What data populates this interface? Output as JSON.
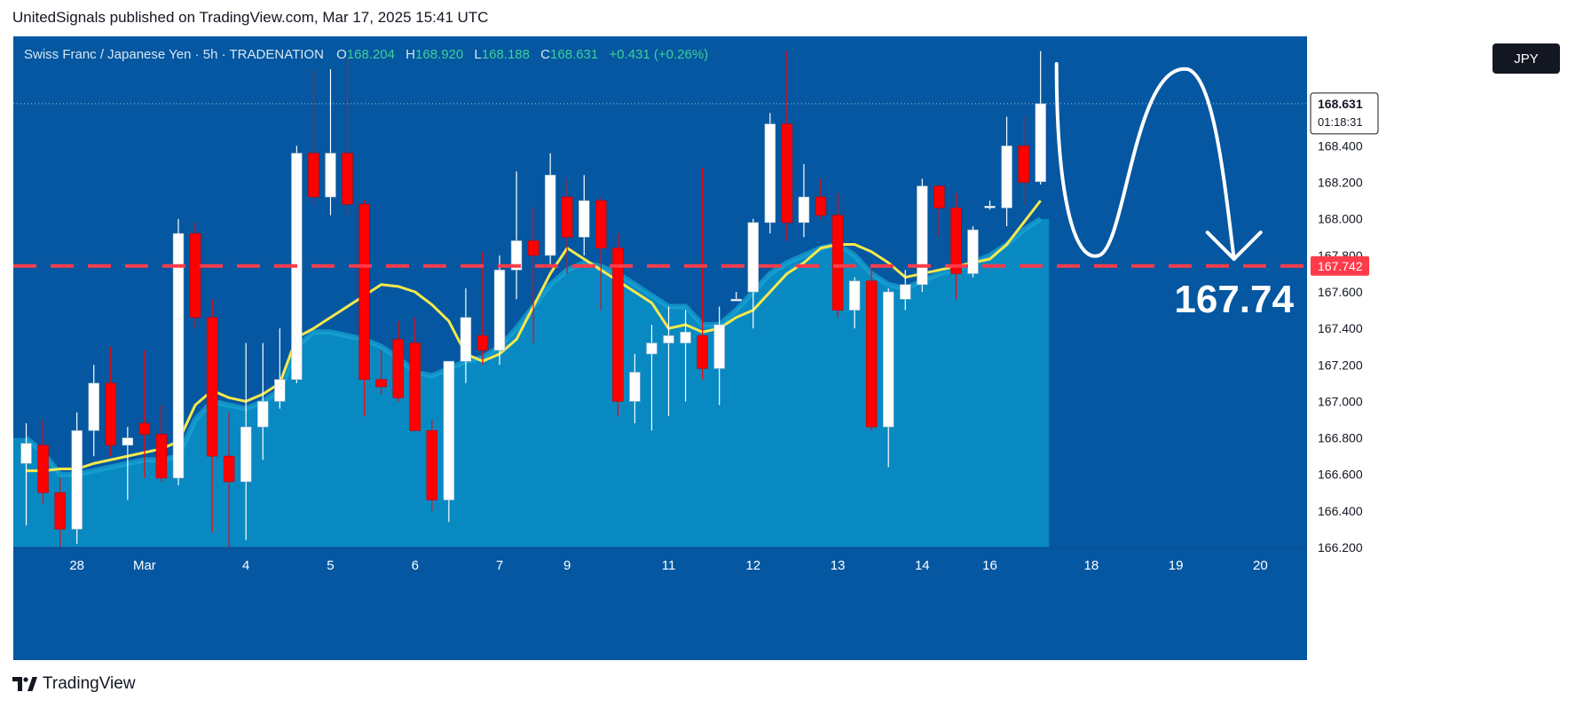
{
  "header": {
    "publisher_line": "UnitedSignals published on TradingView.com, Mar 17, 2025 15:41 UTC"
  },
  "footer": {
    "brand": "TradingView"
  },
  "currency_button": "JPY",
  "legend": {
    "symbol": "Swiss Franc  / Japanese Yen · 5h · TRADENATION",
    "o_label": "O",
    "o": "168.204",
    "h_label": "H",
    "h": "168.920",
    "l_label": "L",
    "l": "168.188",
    "c_label": "C",
    "c": "168.631",
    "change": "+0.431 (+0.26%)"
  },
  "price_badge": {
    "price": "168.631",
    "countdown": "01:18:31"
  },
  "level_badge": "167.742",
  "target_annotation": "167.74",
  "colors": {
    "background": "#0457a0",
    "up_candle": "#ffffff",
    "down_candle": "#ff0000",
    "ma_line": "#f5e94b",
    "area_fill": "#0a8cc4",
    "level_line": "#ff3b4a",
    "level_badge": "#ff3b4a"
  },
  "chart_data": {
    "type": "candlestick",
    "symbol": "CHF/JPY",
    "timeframe": "5h",
    "ylim": [
      166.2,
      169.0
    ],
    "y_ticks": [
      166.2,
      166.4,
      166.6,
      166.8,
      167.0,
      167.2,
      167.4,
      167.6,
      167.8,
      168.0,
      168.2,
      168.4
    ],
    "y_tick_labels": [
      "166.200",
      "166.400",
      "166.600",
      "166.800",
      "167.000",
      "167.200",
      "167.400",
      "167.600",
      "167.800",
      "168.000",
      "168.200",
      "168.400"
    ],
    "x_ticks": [
      {
        "label": "28",
        "bar": 3
      },
      {
        "label": "Mar",
        "bar": 7
      },
      {
        "label": "4",
        "bar": 13
      },
      {
        "label": "5",
        "bar": 18
      },
      {
        "label": "6",
        "bar": 23
      },
      {
        "label": "7",
        "bar": 28
      },
      {
        "label": "9",
        "bar": 32
      },
      {
        "label": "11",
        "bar": 38
      },
      {
        "label": "12",
        "bar": 43
      },
      {
        "label": "13",
        "bar": 48
      },
      {
        "label": "14",
        "bar": 53
      },
      {
        "label": "16",
        "bar": 57
      },
      {
        "label": "18",
        "bar": 63
      },
      {
        "label": "19",
        "bar": 68
      },
      {
        "label": "20",
        "bar": 73
      }
    ],
    "total_slots": 76,
    "candles": [
      {
        "o": 166.66,
        "h": 166.88,
        "l": 166.32,
        "c": 166.77
      },
      {
        "o": 166.76,
        "h": 166.9,
        "l": 166.44,
        "c": 166.5
      },
      {
        "o": 166.5,
        "h": 166.58,
        "l": 166.2,
        "c": 166.3
      },
      {
        "o": 166.3,
        "h": 166.94,
        "l": 166.22,
        "c": 166.84
      },
      {
        "o": 166.84,
        "h": 167.2,
        "l": 166.7,
        "c": 167.1
      },
      {
        "o": 167.1,
        "h": 167.3,
        "l": 166.7,
        "c": 166.76
      },
      {
        "o": 166.76,
        "h": 166.86,
        "l": 166.46,
        "c": 166.8
      },
      {
        "o": 166.88,
        "h": 167.28,
        "l": 166.58,
        "c": 166.82
      },
      {
        "o": 166.82,
        "h": 166.98,
        "l": 166.56,
        "c": 166.58
      },
      {
        "o": 166.58,
        "h": 168.0,
        "l": 166.54,
        "c": 167.92
      },
      {
        "o": 167.92,
        "h": 167.98,
        "l": 167.4,
        "c": 167.46
      },
      {
        "o": 167.46,
        "h": 167.56,
        "l": 166.28,
        "c": 166.7
      },
      {
        "o": 166.7,
        "h": 166.94,
        "l": 166.2,
        "c": 166.56
      },
      {
        "o": 166.56,
        "h": 167.32,
        "l": 166.24,
        "c": 166.86
      },
      {
        "o": 166.86,
        "h": 167.32,
        "l": 166.68,
        "c": 167.0
      },
      {
        "o": 167.0,
        "h": 167.4,
        "l": 166.96,
        "c": 167.12
      },
      {
        "o": 167.12,
        "h": 168.4,
        "l": 167.1,
        "c": 168.36
      },
      {
        "o": 168.36,
        "h": 168.82,
        "l": 168.08,
        "c": 168.12
      },
      {
        "o": 168.12,
        "h": 168.82,
        "l": 168.02,
        "c": 168.36
      },
      {
        "o": 168.36,
        "h": 168.88,
        "l": 168.02,
        "c": 168.08
      },
      {
        "o": 168.08,
        "h": 168.1,
        "l": 166.92,
        "c": 167.12
      },
      {
        "o": 167.12,
        "h": 167.28,
        "l": 167.04,
        "c": 167.08
      },
      {
        "o": 167.34,
        "h": 167.44,
        "l": 167.0,
        "c": 167.02
      },
      {
        "o": 167.32,
        "h": 167.46,
        "l": 166.84,
        "c": 166.84
      },
      {
        "o": 166.84,
        "h": 166.9,
        "l": 166.4,
        "c": 166.46
      },
      {
        "o": 166.46,
        "h": 167.22,
        "l": 166.34,
        "c": 167.22
      },
      {
        "o": 167.22,
        "h": 167.62,
        "l": 167.1,
        "c": 167.46
      },
      {
        "o": 167.36,
        "h": 167.82,
        "l": 167.2,
        "c": 167.28
      },
      {
        "o": 167.28,
        "h": 167.8,
        "l": 167.2,
        "c": 167.72
      },
      {
        "o": 167.72,
        "h": 168.26,
        "l": 167.56,
        "c": 167.88
      },
      {
        "o": 167.88,
        "h": 168.06,
        "l": 167.32,
        "c": 167.8
      },
      {
        "o": 167.8,
        "h": 168.36,
        "l": 167.74,
        "c": 168.24
      },
      {
        "o": 168.12,
        "h": 168.22,
        "l": 167.7,
        "c": 167.9
      },
      {
        "o": 167.9,
        "h": 168.24,
        "l": 167.8,
        "c": 168.1
      },
      {
        "o": 168.1,
        "h": 168.12,
        "l": 167.5,
        "c": 167.84
      },
      {
        "o": 167.84,
        "h": 167.92,
        "l": 166.92,
        "c": 167.0
      },
      {
        "o": 167.0,
        "h": 167.26,
        "l": 166.88,
        "c": 167.16
      },
      {
        "o": 167.26,
        "h": 167.42,
        "l": 166.84,
        "c": 167.32
      },
      {
        "o": 167.32,
        "h": 167.52,
        "l": 166.92,
        "c": 167.36
      },
      {
        "o": 167.32,
        "h": 167.5,
        "l": 167.0,
        "c": 167.38
      },
      {
        "o": 167.36,
        "h": 168.28,
        "l": 167.12,
        "c": 167.18
      },
      {
        "o": 167.18,
        "h": 167.52,
        "l": 166.98,
        "c": 167.42
      },
      {
        "o": 167.56,
        "h": 167.6,
        "l": 167.56,
        "c": 167.56
      },
      {
        "o": 167.6,
        "h": 168.0,
        "l": 167.4,
        "c": 167.98
      },
      {
        "o": 167.98,
        "h": 168.58,
        "l": 167.92,
        "c": 168.52
      },
      {
        "o": 168.52,
        "h": 168.92,
        "l": 167.88,
        "c": 167.98
      },
      {
        "o": 167.98,
        "h": 168.3,
        "l": 167.9,
        "c": 168.12
      },
      {
        "o": 168.12,
        "h": 168.22,
        "l": 168.0,
        "c": 168.02
      },
      {
        "o": 168.02,
        "h": 168.14,
        "l": 167.46,
        "c": 167.5
      },
      {
        "o": 167.5,
        "h": 167.68,
        "l": 167.4,
        "c": 167.66
      },
      {
        "o": 167.66,
        "h": 167.74,
        "l": 166.84,
        "c": 166.86
      },
      {
        "o": 166.86,
        "h": 167.62,
        "l": 166.64,
        "c": 167.6
      },
      {
        "o": 167.56,
        "h": 167.72,
        "l": 167.5,
        "c": 167.64
      },
      {
        "o": 167.64,
        "h": 168.22,
        "l": 167.6,
        "c": 168.18
      },
      {
        "o": 168.18,
        "h": 168.18,
        "l": 167.9,
        "c": 168.06
      },
      {
        "o": 168.06,
        "h": 168.14,
        "l": 167.56,
        "c": 167.7
      },
      {
        "o": 167.7,
        "h": 167.96,
        "l": 167.68,
        "c": 167.94
      },
      {
        "o": 168.07,
        "h": 168.1,
        "l": 168.05,
        "c": 168.07
      },
      {
        "o": 168.06,
        "h": 168.56,
        "l": 167.96,
        "c": 168.4
      },
      {
        "o": 168.4,
        "h": 168.56,
        "l": 168.08,
        "c": 168.2
      },
      {
        "o": 168.204,
        "h": 168.92,
        "l": 168.188,
        "c": 168.631
      }
    ],
    "ma_line": [
      166.62,
      166.62,
      166.63,
      166.63,
      166.66,
      166.68,
      166.7,
      166.72,
      166.74,
      166.78,
      166.98,
      167.06,
      167.02,
      167.0,
      167.04,
      167.1,
      167.35,
      167.4,
      167.46,
      167.52,
      167.58,
      167.64,
      167.63,
      167.6,
      167.53,
      167.44,
      167.26,
      167.22,
      167.26,
      167.34,
      167.52,
      167.7,
      167.84,
      167.78,
      167.72,
      167.66,
      167.6,
      167.54,
      167.4,
      167.42,
      167.38,
      167.4,
      167.46,
      167.5,
      167.6,
      167.7,
      167.76,
      167.84,
      167.86,
      167.86,
      167.82,
      167.76,
      167.68,
      167.7,
      167.72,
      167.74,
      167.76,
      167.78,
      167.86,
      167.98,
      168.1
    ],
    "area_line": [
      166.8,
      166.72,
      166.6,
      166.6,
      166.62,
      166.64,
      166.66,
      166.68,
      166.68,
      166.7,
      166.9,
      167.0,
      166.98,
      166.96,
      167.0,
      167.06,
      167.3,
      167.38,
      167.38,
      167.36,
      167.34,
      167.3,
      167.24,
      167.16,
      167.14,
      167.18,
      167.22,
      167.24,
      167.3,
      167.4,
      167.52,
      167.64,
      167.72,
      167.76,
      167.74,
      167.7,
      167.64,
      167.58,
      167.52,
      167.52,
      167.42,
      167.42,
      167.5,
      167.6,
      167.7,
      167.76,
      167.8,
      167.84,
      167.86,
      167.8,
      167.7,
      167.64,
      167.62,
      167.66,
      167.7,
      167.72,
      167.76,
      167.8,
      167.86,
      167.94,
      168.0
    ],
    "horizontal_level": 167.742,
    "last_price": 168.631,
    "forecast_path_prices": [
      168.85,
      167.8,
      168.82,
      167.78
    ]
  }
}
